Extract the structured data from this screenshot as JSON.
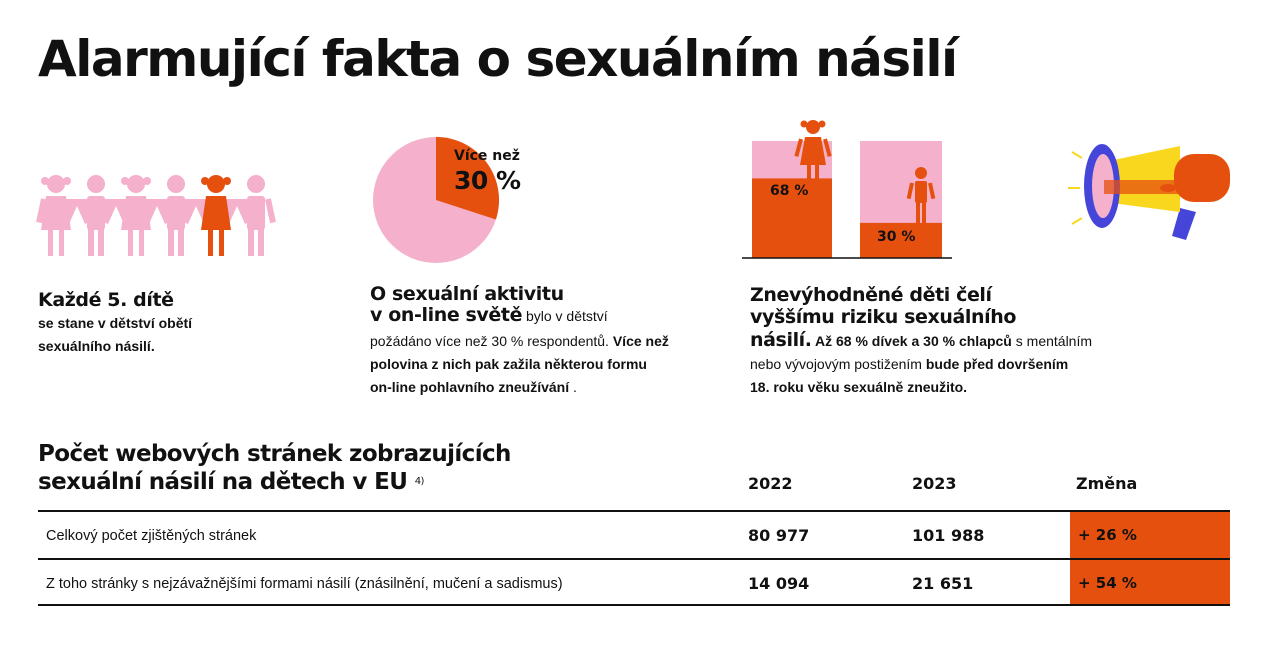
{
  "title": "Alarmující fakta o sexuálním násilí",
  "colors": {
    "pink": "#f5b0cc",
    "orange": "#e6500f",
    "yellow": "#fad71f",
    "blue": "#4545d9",
    "text": "#111111"
  },
  "facts": [
    {
      "icon": "children-chain-icon",
      "heading": "Každé 5. dítě",
      "body": [
        "se stane v dětství obětí",
        "sexuálního násilí."
      ]
    },
    {
      "icon": "pie-chart-icon",
      "pie_label_small": "Více než",
      "pie_label_big": "30 %",
      "pie_share": 0.3,
      "heading_1": "O sexuální aktivitu",
      "heading_2": "v on-line světě",
      "body_1": " bylo v dětství",
      "body_2": "požádáno více než 30 % respondentů. ",
      "body_2b": "Více než",
      "body_3": "polovina z nich pak zažila některou formu",
      "body_4": "on-line pohlavního zneužívání",
      "body_4b": " ."
    },
    {
      "icon": "bar-comparison-icon",
      "bar_girls_label": "68 %",
      "bar_girls_value": 68,
      "bar_boys_label": "30 %",
      "bar_boys_value": 30,
      "heading_1": "Znevýhodněné děti čelí",
      "heading_2": "vyššímu riziku sexuálního",
      "heading_3": "násilí.",
      "body_1": " Až 68 % dívek a 30 % chlapců",
      "body_1b": " s mentálním",
      "body_2": "nebo vývojovým postižením ",
      "body_2b": "bude před dovršením",
      "body_3": "18. roku věku sexuálně zneužito."
    }
  ],
  "table": {
    "title_1": "Počet webových stránek zobrazujících",
    "title_2": "sexuální násilí na dětech v EU",
    "title_note": "4)",
    "columns": [
      "2022",
      "2023",
      "Změna"
    ],
    "rows": [
      {
        "label": "Celkový počet zjištěných stránek",
        "v2022": "80 977",
        "v2023": "101 988",
        "change": "+ 26 %"
      },
      {
        "label": "Z toho stránky s nejzávažnějšími formami násilí (znásilnění, mučení a sadismus)",
        "v2022": "14 094",
        "v2023": "21 651",
        "change": "+ 54 %"
      }
    ]
  }
}
